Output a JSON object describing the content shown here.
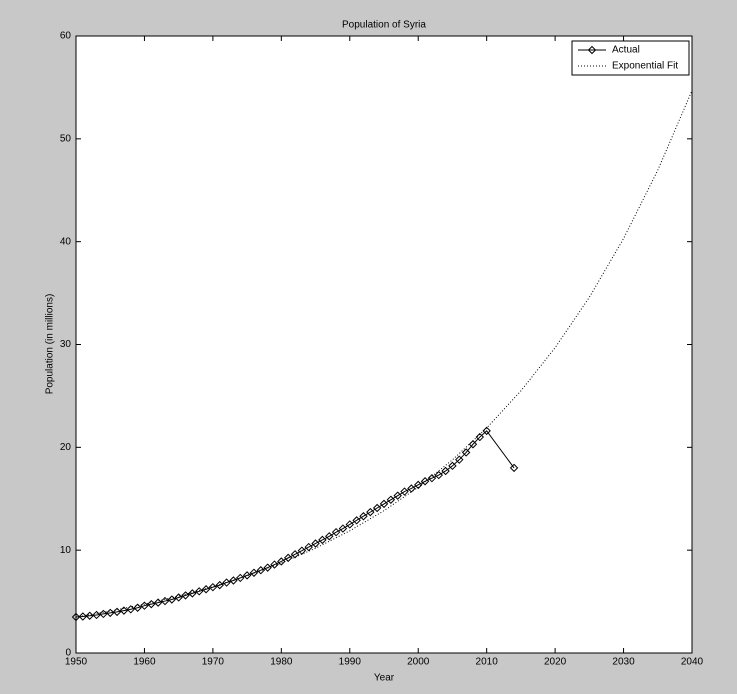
{
  "chart_data": {
    "type": "line",
    "title": "Population of Syria",
    "x_label": "Year",
    "y_label": "Population (in millions)",
    "xlim": [
      1950,
      2040
    ],
    "ylim": [
      0,
      60
    ],
    "xticks": [
      1950,
      1960,
      1970,
      1980,
      1990,
      2000,
      2010,
      2020,
      2030,
      2040
    ],
    "yticks": [
      0,
      10,
      20,
      30,
      40,
      50,
      60
    ],
    "grid": false,
    "legend": "northeast",
    "series": [
      {
        "name": "Actual",
        "color": "#000000",
        "marker": "diamond",
        "style": "solid",
        "x": [
          1950,
          1951,
          1952,
          1953,
          1954,
          1955,
          1956,
          1957,
          1958,
          1959,
          1960,
          1961,
          1962,
          1963,
          1964,
          1965,
          1966,
          1967,
          1968,
          1969,
          1970,
          1971,
          1972,
          1973,
          1974,
          1975,
          1976,
          1977,
          1978,
          1979,
          1980,
          1981,
          1982,
          1983,
          1984,
          1985,
          1986,
          1987,
          1988,
          1989,
          1990,
          1991,
          1992,
          1993,
          1994,
          1995,
          1996,
          1997,
          1998,
          1999,
          2000,
          2001,
          2002,
          2003,
          2004,
          2005,
          2006,
          2007,
          2008,
          2009,
          2010,
          2014
        ],
        "values": [
          3.5,
          3.55,
          3.62,
          3.7,
          3.8,
          3.9,
          4.0,
          4.12,
          4.25,
          4.4,
          4.6,
          4.75,
          4.9,
          5.05,
          5.2,
          5.4,
          5.6,
          5.8,
          6.0,
          6.2,
          6.4,
          6.6,
          6.85,
          7.05,
          7.3,
          7.55,
          7.8,
          8.05,
          8.3,
          8.6,
          8.9,
          9.25,
          9.6,
          9.95,
          10.3,
          10.65,
          11.0,
          11.35,
          11.75,
          12.1,
          12.5,
          12.9,
          13.3,
          13.7,
          14.1,
          14.5,
          14.9,
          15.3,
          15.7,
          16.0,
          16.35,
          16.7,
          17.0,
          17.3,
          17.7,
          18.2,
          18.8,
          19.5,
          20.3,
          21.0,
          21.6,
          18.0
        ]
      },
      {
        "name": "Exponential Fit",
        "color": "#000000",
        "marker": "none",
        "style": "dotted",
        "x": [
          1950,
          1955,
          1960,
          1965,
          1970,
          1975,
          1980,
          1985,
          1990,
          1995,
          2000,
          2005,
          2010,
          2015,
          2020,
          2025,
          2030,
          2035,
          2040
        ],
        "values": [
          3.5,
          4.08,
          4.75,
          5.53,
          6.45,
          7.51,
          8.75,
          10.19,
          11.88,
          13.84,
          16.12,
          18.78,
          21.88,
          25.49,
          29.69,
          34.59,
          40.3,
          46.95,
          54.69
        ]
      }
    ]
  }
}
